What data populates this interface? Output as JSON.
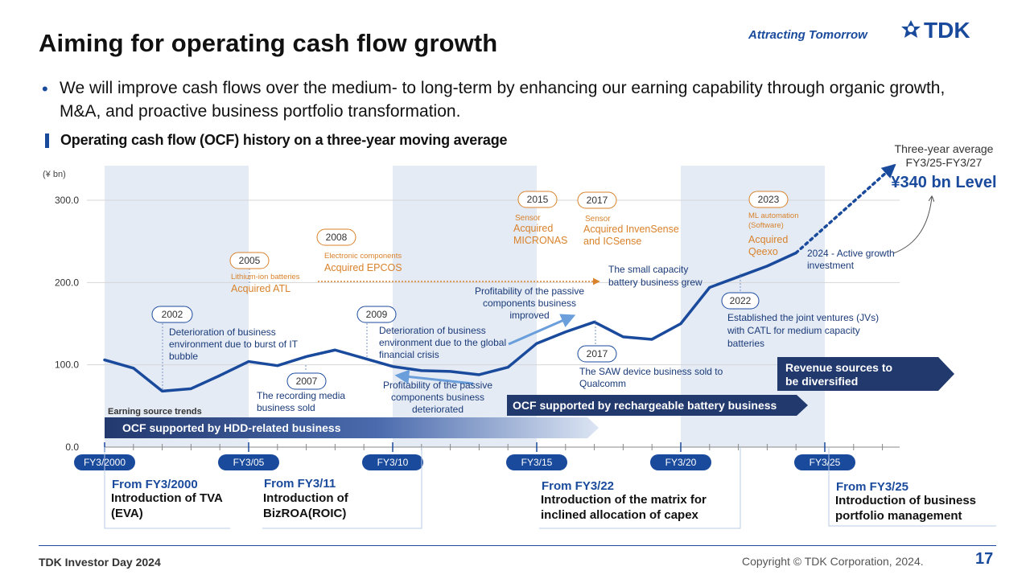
{
  "header": {
    "title": "Aiming for operating cash flow growth",
    "tagline": "Attracting Tomorrow",
    "logo_text": "TDK"
  },
  "bullet": "We will improve cash flows over the medium- to long-term by enhancing our earning capability through organic growth, M&A, and proactive business portfolio transformation.",
  "subtitle": "Operating cash flow (OCF) history on a three-year moving average",
  "chart_data": {
    "type": "line",
    "unit": "(¥ bn)",
    "ylim": [
      0,
      300
    ],
    "yticks": [
      "300.0",
      "200.0",
      "100.0",
      "0.0"
    ],
    "ytick_values": [
      300,
      200,
      100,
      0
    ],
    "xlim": [
      2000,
      2027.5
    ],
    "xticks": [
      {
        "label": "FY3/2000",
        "year": 2000
      },
      {
        "label": "FY3/05",
        "year": 2005
      },
      {
        "label": "FY3/10",
        "year": 2010
      },
      {
        "label": "FY3/15",
        "year": 2015
      },
      {
        "label": "FY3/20",
        "year": 2020
      },
      {
        "label": "FY3/25",
        "year": 2025
      }
    ],
    "series": [
      {
        "x": [
          2000,
          2001,
          2002,
          2003,
          2004,
          2005,
          2006,
          2007,
          2008,
          2009,
          2010,
          2011,
          2012,
          2013,
          2014,
          2015,
          2016,
          2017,
          2018,
          2019,
          2020,
          2021,
          2022,
          2023,
          2024
        ],
        "values": [
          106,
          96,
          68,
          71,
          87,
          104,
          99,
          110,
          118,
          108,
          98,
          93,
          92,
          88,
          97,
          126,
          140,
          152,
          134,
          131,
          150,
          194,
          207,
          220,
          236
        ]
      }
    ],
    "projection": {
      "x": [
        2024,
        2027.4
      ],
      "values": [
        236,
        342
      ]
    },
    "projection_label": {
      "line1": "Three-year average",
      "line2": "FY3/25-FY3/27",
      "value": "¥340 bn Level"
    },
    "shaded_periods": [
      [
        2000,
        2005
      ],
      [
        2010,
        2015
      ],
      [
        2020,
        2025
      ]
    ],
    "events": [
      {
        "year": "2002",
        "text": "Deterioration  of business environment  due to burst of IT bubble"
      },
      {
        "year": "2005",
        "category": "Lithium-ion batteries",
        "text": "Acquired ATL"
      },
      {
        "year": "2007",
        "text": "The recording media business sold"
      },
      {
        "year": "2008",
        "category": "Electronic components",
        "text": "Acquired EPCOS"
      },
      {
        "year": "2009",
        "text": "Deterioration  of business environment  due to the global financial crisis"
      },
      {
        "year": "2015",
        "category": "Sensor",
        "text": "Acquired MICRONAS"
      },
      {
        "year": "2017",
        "category": "Sensor",
        "text": "Acquired InvenSense and ICSense"
      },
      {
        "year": "2017",
        "text": "The SAW device business sold to Qualcomm"
      },
      {
        "year": "2022",
        "text": "Established the joint ventures (JVs) with CATL for medium capacity batteries"
      },
      {
        "year": "2023",
        "category": "ML automation (Software)",
        "text": "Acquired Qeexo"
      }
    ],
    "annotations": {
      "passive_down": "Profitability of the passive components business deteriorated",
      "passive_up": "Profitability of the passive components business improved",
      "small_battery": "The small capacity battery business grew",
      "growth_investment": "2024 - Active growth investment"
    },
    "earning_source_label": "Earning source trends",
    "bands": {
      "hdd": "OCF supported by HDD-related business",
      "battery": "OCF supported by rechargeable battery business",
      "diversified": "Revenue sources to be diversified"
    },
    "colors": {
      "line": "#1a4a9c",
      "shade": "#e4ebf5",
      "event": "#d9822b",
      "arrow": "#6a9fdc",
      "navy": "#22396e"
    }
  },
  "milestones": [
    {
      "from": "From FY3/2000",
      "text": "Introduction of TVA (EVA)"
    },
    {
      "from": "From FY3/11",
      "text": "Introduction of BizROA(ROIC)"
    },
    {
      "from": "From FY3/22",
      "text": "Introduction of the matrix for inclined allocation of capex"
    },
    {
      "from": "From FY3/25",
      "text": "Introduction of business portfolio management"
    }
  ],
  "footer": {
    "left": "TDK Investor Day 2024",
    "copyright": "Copyright   © TDK Corporation, 2024.",
    "page": "17"
  }
}
